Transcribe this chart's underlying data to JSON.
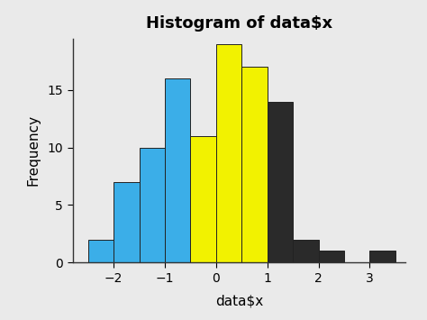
{
  "title": "Histogram of data$x",
  "xlabel": "data$x",
  "ylabel": "Frequency",
  "bar_edges": [
    -2.5,
    -2.0,
    -1.5,
    -1.0,
    -0.5,
    0.0,
    0.5,
    1.0,
    1.5,
    2.0,
    2.5,
    3.0,
    3.5
  ],
  "bar_heights": [
    2,
    7,
    10,
    16,
    11,
    19,
    17,
    14,
    2,
    1,
    0,
    1
  ],
  "bar_colors": [
    "#3baee8",
    "#3baee8",
    "#3baee8",
    "#3baee8",
    "#f2f200",
    "#f2f200",
    "#f2f200",
    "#2a2a2a",
    "#2a2a2a",
    "#2a2a2a",
    "#2a2a2a",
    "#2a2a2a"
  ],
  "xlim": [
    -2.8,
    3.7
  ],
  "ylim": [
    0,
    19.5
  ],
  "yticks": [
    0,
    5,
    10,
    15
  ],
  "xticks": [
    -2,
    -1,
    0,
    1,
    2,
    3
  ],
  "background_color": "#eaeaea",
  "title_fontsize": 13,
  "axis_label_fontsize": 11,
  "tick_fontsize": 10,
  "bar_edgecolor": "#222222",
  "bar_linewidth": 0.7
}
